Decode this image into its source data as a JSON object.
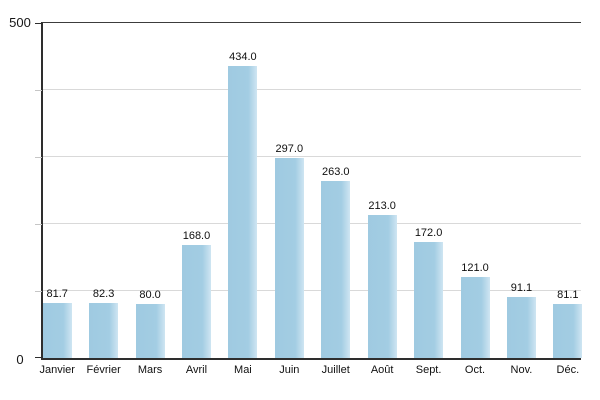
{
  "chart_data": {
    "type": "bar",
    "title": "",
    "xlabel": "",
    "ylabel": "",
    "categories": [
      "Janvier",
      "Février",
      "Mars",
      "Avril",
      "Mai",
      "Juin",
      "Juillet",
      "Août",
      "Sept.",
      "Oct.",
      "Nov.",
      "Déc."
    ],
    "values": [
      81.7,
      82.3,
      80.0,
      168.0,
      434.0,
      297.0,
      263.0,
      213.0,
      172.0,
      121.0,
      91.1,
      81.1
    ],
    "value_labels": [
      "81.7",
      "82.3",
      "80.0",
      "168.0",
      "434.0",
      "297.0",
      "263.0",
      "213.0",
      "172.0",
      "121.0",
      "91.1",
      "81.1"
    ],
    "ylim": [
      0,
      500
    ],
    "yticks": [
      0,
      100,
      200,
      300,
      400,
      500
    ],
    "ytick_labels_shown": [
      "0",
      "500"
    ],
    "grid": true,
    "legend": false,
    "bar_color": "#a0cbe2"
  },
  "axes": {
    "y_max_label": "500",
    "y_min_label": "0"
  },
  "colors": {
    "bar_fill": "#a0cbe2",
    "bar_fill_highlight": "#cfe5f2",
    "axis_line": "#2e2e2e",
    "gridline": "#d9d9d9",
    "tick_minor": "#c6c6c6",
    "text": "#101010",
    "background": "#ffffff"
  }
}
